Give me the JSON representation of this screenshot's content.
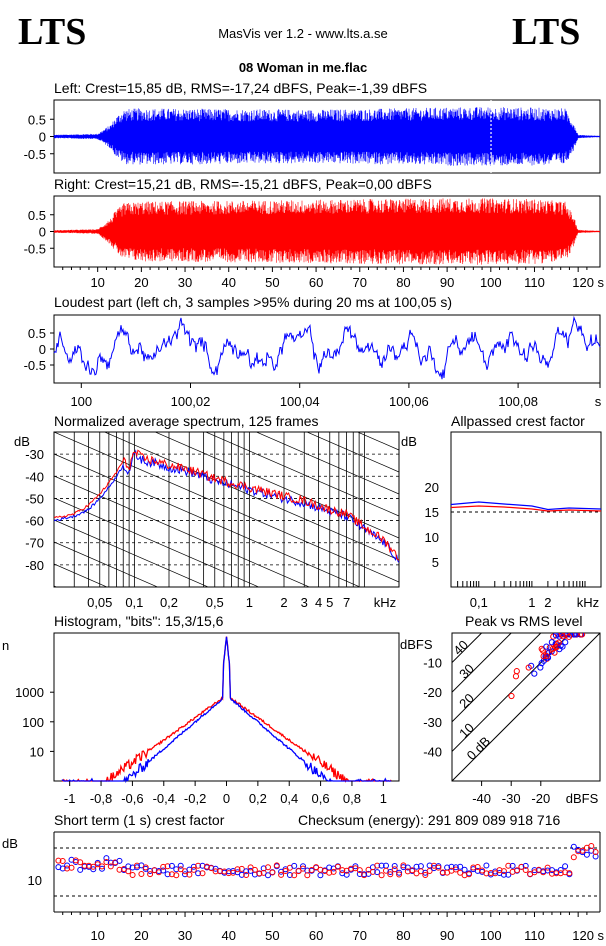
{
  "header": {
    "logo_left": "LTS",
    "logo_right": "LTS",
    "app_title": "MasVis ver 1.2 - www.lts.a.se",
    "file_title": "08 Woman in me.flac"
  },
  "colors": {
    "left": "#0000ff",
    "right": "#ff0000",
    "grid": "#000000"
  },
  "chart_data": [
    {
      "id": "left_waveform",
      "type": "area",
      "title": "Left: Crest=15,85 dB, RMS=-17,24 dBFS, Peak=-1,39 dBFS",
      "yticks": [
        "0.5",
        "0",
        "-0.5"
      ],
      "xlim": [
        0,
        125
      ],
      "ylim": [
        -1,
        1
      ],
      "envelope": {
        "x": [
          0,
          10,
          13,
          14,
          16,
          20,
          40,
          60,
          80,
          90,
          100,
          110,
          117,
          119,
          120,
          125
        ],
        "amp": [
          0.05,
          0.08,
          0.35,
          0.55,
          0.8,
          0.82,
          0.8,
          0.78,
          0.82,
          0.85,
          0.86,
          0.84,
          0.82,
          0.4,
          0.05,
          0.02
        ]
      },
      "marker_x": 100.05
    },
    {
      "id": "right_waveform",
      "type": "area",
      "title": "Right: Crest=15,21 dB, RMS=-15,21 dBFS, Peak=0,00 dBFS",
      "yticks": [
        "0.5",
        "0",
        "-0.5"
      ],
      "xticks": [
        "10",
        "20",
        "30",
        "40",
        "50",
        "60",
        "70",
        "80",
        "90",
        "100",
        "110",
        "120 s"
      ],
      "xlim": [
        0,
        125
      ],
      "ylim": [
        -1,
        1
      ],
      "envelope": {
        "x": [
          0,
          10,
          13,
          14,
          16,
          20,
          40,
          60,
          80,
          90,
          100,
          110,
          117,
          119,
          120,
          125
        ],
        "amp": [
          0.04,
          0.07,
          0.4,
          0.6,
          0.85,
          0.9,
          0.92,
          0.95,
          0.98,
          1.0,
          0.99,
          0.97,
          0.9,
          0.45,
          0.05,
          0.02
        ]
      }
    },
    {
      "id": "loudest_part",
      "type": "line",
      "title": "Loudest part (left  ch, 3 samples >95% during 20 ms at 100,05 s)",
      "yticks": [
        "0.5",
        "0",
        "-0.5"
      ],
      "xticks": [
        "100",
        "100,02",
        "100,04",
        "100,06",
        "100,08",
        "s"
      ],
      "xlim": [
        99.995,
        100.095
      ],
      "ylim": [
        -1,
        1
      ]
    },
    {
      "id": "spectrum",
      "type": "line",
      "title": "Normalized average spectrum, 125 frames",
      "ylabel": "dB",
      "yticks": [
        "-30",
        "-40",
        "-50",
        "-60",
        "-70",
        "-80"
      ],
      "xticks": [
        "0,05",
        "0,1",
        "0,2",
        "0,5",
        "1",
        "2",
        "3",
        "4",
        "5",
        "7",
        "kHz"
      ],
      "xlim": [
        0.02,
        20
      ],
      "ylim": [
        -90,
        -20
      ],
      "series": [
        {
          "name": "left",
          "x": [
            0.02,
            0.03,
            0.04,
            0.05,
            0.06,
            0.07,
            0.08,
            0.09,
            0.1,
            0.12,
            0.15,
            0.2,
            0.3,
            0.5,
            0.7,
            1,
            2,
            3,
            5,
            7,
            10,
            15,
            20
          ],
          "values": [
            -60,
            -58,
            -55,
            -50,
            -45,
            -40,
            -35,
            -38,
            -30,
            -33,
            -34,
            -36,
            -38,
            -42,
            -44,
            -46,
            -50,
            -52,
            -56,
            -58,
            -64,
            -70,
            -78
          ]
        },
        {
          "name": "right",
          "x": [
            0.02,
            0.03,
            0.04,
            0.05,
            0.06,
            0.07,
            0.08,
            0.09,
            0.1,
            0.12,
            0.15,
            0.2,
            0.3,
            0.5,
            0.7,
            1,
            2,
            3,
            5,
            7,
            10,
            15,
            20
          ],
          "values": [
            -59,
            -57,
            -53,
            -48,
            -43,
            -38,
            -33,
            -36,
            -29,
            -32,
            -33,
            -35,
            -37,
            -41,
            -43,
            -45,
            -49,
            -51,
            -55,
            -57,
            -63,
            -69,
            -77
          ]
        }
      ]
    },
    {
      "id": "allpassed_crest",
      "type": "line",
      "title": "Allpassed crest factor",
      "ylabel": "dB",
      "yticks": [
        "20",
        "15",
        "10",
        "5"
      ],
      "xticks": [
        "0,1",
        "1",
        "2",
        "kHz"
      ],
      "xlim": [
        0.03,
        20
      ],
      "ylim": [
        0,
        25
      ],
      "series": [
        {
          "name": "left",
          "x": [
            0.03,
            0.1,
            0.3,
            1,
            2,
            5,
            10,
            20
          ],
          "values": [
            16.5,
            17.0,
            16.6,
            16.2,
            15.5,
            15.8,
            15.7,
            15.6
          ]
        },
        {
          "name": "right",
          "x": [
            0.03,
            0.1,
            0.3,
            1,
            2,
            5,
            10,
            20
          ],
          "values": [
            15.9,
            16.2,
            16.0,
            15.6,
            15.2,
            15.4,
            15.3,
            15.2
          ]
        }
      ]
    },
    {
      "id": "histogram",
      "type": "line",
      "title": "Histogram, \"bits\": 15,3/15,6",
      "ylabel": "n",
      "yticks": [
        "1000",
        "100",
        "10"
      ],
      "xticks": [
        "-1",
        "-0,8",
        "-0,6",
        "-0,4",
        "-0,2",
        "0",
        "0,2",
        "0,4",
        "0,6",
        "0,8",
        "1"
      ],
      "xlim": [
        -1.1,
        1.1
      ],
      "ylim_log10": [
        0,
        5
      ]
    },
    {
      "id": "peak_vs_rms",
      "type": "scatter",
      "title": "Peak vs RMS level",
      "ylabel": "dBFS",
      "xlabel": "dBFS",
      "yticks": [
        "-10",
        "-20",
        "-30",
        "-40"
      ],
      "xticks": [
        "-40",
        "-30",
        "-20",
        "dBFS"
      ],
      "diag_labels": [
        "40",
        "30",
        "20",
        "10",
        "0 dB"
      ],
      "xlim": [
        -50,
        0
      ],
      "ylim": [
        -50,
        0
      ]
    },
    {
      "id": "short_term_crest",
      "type": "scatter",
      "title": "Short term (1 s) crest factor",
      "ylabel": "dB",
      "yticks": [
        "10"
      ],
      "xticks": [
        "10",
        "20",
        "30",
        "40",
        "50",
        "60",
        "70",
        "80",
        "90",
        "100",
        "110",
        "120 s"
      ],
      "xlim": [
        0,
        125
      ],
      "ylim": [
        0,
        25
      ]
    }
  ],
  "checksum_text": "Checksum (energy):   291 809 089 918 716"
}
